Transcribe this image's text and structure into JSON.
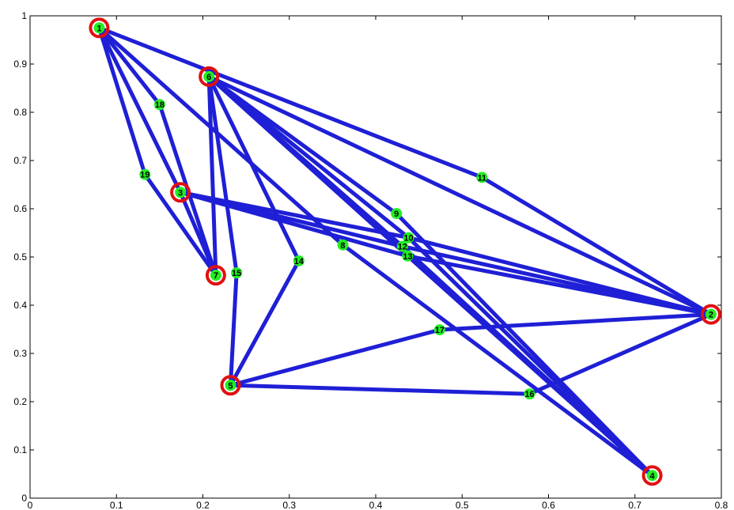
{
  "chart_data": {
    "type": "scatter",
    "title": "",
    "xlabel": "",
    "ylabel": "",
    "xlim": [
      0,
      0.8
    ],
    "ylim": [
      0,
      1
    ],
    "xticks": [
      "0",
      "0.1",
      "0.2",
      "0.3",
      "0.4",
      "0.5",
      "0.6",
      "0.7",
      "0.8"
    ],
    "yticks": [
      "0",
      "0.1",
      "0.2",
      "0.3",
      "0.4",
      "0.5",
      "0.6",
      "0.7",
      "0.8",
      "0.9",
      "1"
    ],
    "grid": false,
    "edge_color": "#1f1fd6",
    "node_color": "#22ee22",
    "highlight_ring_color": "#e01010",
    "nodes": [
      {
        "id": "1",
        "x": 0.08,
        "y": 0.975,
        "highlight": true
      },
      {
        "id": "2",
        "x": 0.788,
        "y": 0.381,
        "highlight": true
      },
      {
        "id": "3",
        "x": 0.174,
        "y": 0.634,
        "highlight": true
      },
      {
        "id": "4",
        "x": 0.72,
        "y": 0.047,
        "highlight": true
      },
      {
        "id": "5",
        "x": 0.232,
        "y": 0.234,
        "highlight": true
      },
      {
        "id": "6",
        "x": 0.207,
        "y": 0.874,
        "highlight": true
      },
      {
        "id": "7",
        "x": 0.215,
        "y": 0.462,
        "highlight": true
      },
      {
        "id": "8",
        "x": 0.362,
        "y": 0.525,
        "highlight": false
      },
      {
        "id": "9",
        "x": 0.424,
        "y": 0.59,
        "highlight": false
      },
      {
        "id": "10",
        "x": 0.438,
        "y": 0.54,
        "highlight": false
      },
      {
        "id": "11",
        "x": 0.523,
        "y": 0.665,
        "highlight": false
      },
      {
        "id": "12",
        "x": 0.431,
        "y": 0.522,
        "highlight": false
      },
      {
        "id": "13",
        "x": 0.437,
        "y": 0.502,
        "highlight": false
      },
      {
        "id": "14",
        "x": 0.311,
        "y": 0.492,
        "highlight": false
      },
      {
        "id": "15",
        "x": 0.239,
        "y": 0.467,
        "highlight": false
      },
      {
        "id": "16",
        "x": 0.578,
        "y": 0.216,
        "highlight": false
      },
      {
        "id": "17",
        "x": 0.474,
        "y": 0.349,
        "highlight": false
      },
      {
        "id": "18",
        "x": 0.15,
        "y": 0.816,
        "highlight": false
      },
      {
        "id": "19",
        "x": 0.133,
        "y": 0.671,
        "highlight": false
      }
    ],
    "edges": [
      [
        "1",
        "19"
      ],
      [
        "19",
        "7"
      ],
      [
        "1",
        "18"
      ],
      [
        "18",
        "7"
      ],
      [
        "1",
        "3"
      ],
      [
        "3",
        "7"
      ],
      [
        "1",
        "11"
      ],
      [
        "11",
        "2"
      ],
      [
        "1",
        "8"
      ],
      [
        "8",
        "4"
      ],
      [
        "3",
        "10"
      ],
      [
        "10",
        "2"
      ],
      [
        "3",
        "12"
      ],
      [
        "12",
        "2"
      ],
      [
        "3",
        "13"
      ],
      [
        "13",
        "2"
      ],
      [
        "6",
        "7"
      ],
      [
        "6",
        "15"
      ],
      [
        "15",
        "5"
      ],
      [
        "6",
        "14"
      ],
      [
        "14",
        "5"
      ],
      [
        "6",
        "9"
      ],
      [
        "9",
        "4"
      ],
      [
        "6",
        "10"
      ],
      [
        "10",
        "4"
      ],
      [
        "6",
        "12"
      ],
      [
        "12",
        "4"
      ],
      [
        "6",
        "13"
      ],
      [
        "13",
        "4"
      ],
      [
        "6",
        "2"
      ],
      [
        "5",
        "17"
      ],
      [
        "17",
        "2"
      ],
      [
        "5",
        "16"
      ],
      [
        "16",
        "2"
      ]
    ]
  }
}
